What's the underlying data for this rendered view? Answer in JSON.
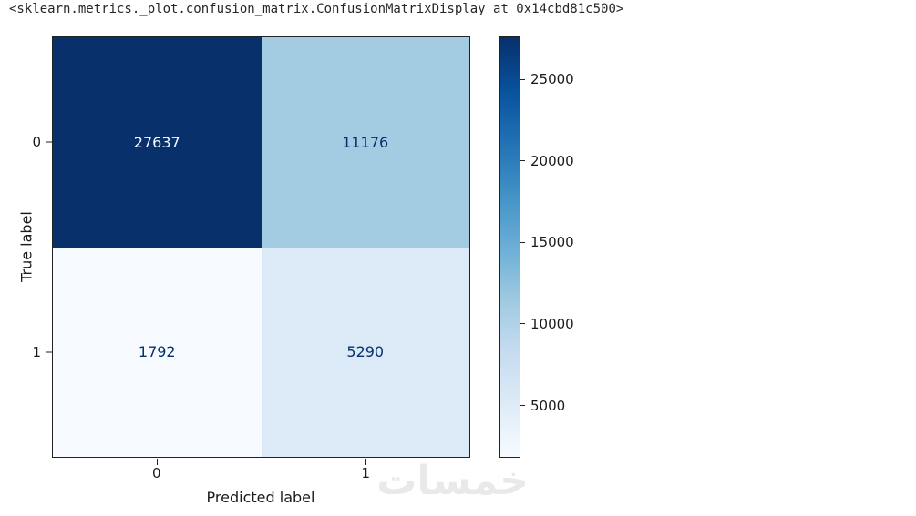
{
  "page": {
    "title": "<sklearn.metrics._plot.confusion_matrix.ConfusionMatrixDisplay at 0x14cbd81c500>",
    "background": "#ffffff"
  },
  "chart_data": {
    "type": "heatmap",
    "subtype": "confusion_matrix",
    "title": "",
    "xlabel": "Predicted label",
    "ylabel": "True label",
    "x_tick_labels": [
      "0",
      "1"
    ],
    "y_tick_labels": [
      "0",
      "1"
    ],
    "matrix": [
      [
        27637,
        11176
      ],
      [
        1792,
        5290
      ]
    ],
    "cell_colors": [
      [
        "#08306b",
        "#a3cbe2"
      ],
      [
        "#f7fbff",
        "#dce9f6"
      ]
    ],
    "cell_text_colors": [
      [
        "#f7fbff",
        "#08306b"
      ],
      [
        "#08306b",
        "#08306b"
      ]
    ],
    "colormap": "Blues",
    "grid": false,
    "legend": null,
    "colorbar": {
      "vmin": 1792,
      "vmax": 27637,
      "ticks": [
        5000,
        10000,
        15000,
        20000,
        25000
      ],
      "gradient_stops": [
        "#f7fbff",
        "#deebf7",
        "#c6dbef",
        "#9ecae1",
        "#6baed6",
        "#4292c6",
        "#2171b5",
        "#08519c",
        "#08306b"
      ]
    }
  },
  "watermark": {
    "text": "خمسات",
    "color": "#e9e9e9"
  }
}
